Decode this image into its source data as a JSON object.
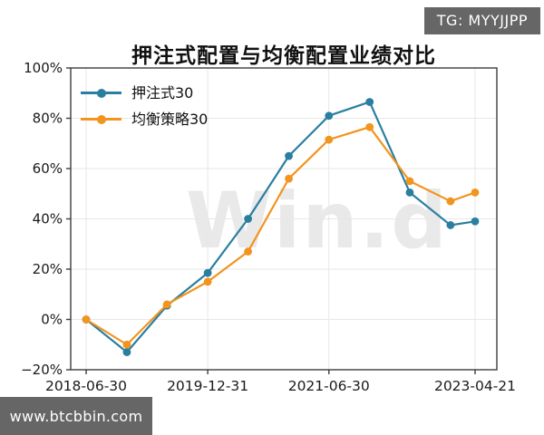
{
  "header": {
    "badge_label": "TG: MYYJJPP"
  },
  "watermark": {
    "text": "Win.d"
  },
  "footer": {
    "site_label": "www.btcbbin.com"
  },
  "colors": {
    "badge_bg": "#666666",
    "footer_bg": "#666666",
    "grid": "#e7e7e7",
    "axis": "#3d3d3d",
    "tick_text": "#1a1a1a",
    "watermark": "#e9e9e9",
    "series_blue": "#2a7fa0",
    "series_orange": "#f2941e"
  },
  "chart_data": {
    "type": "line",
    "title": "押注式配置与均衡配置业绩对比",
    "x": [
      "2018-06-30",
      "2018-12-31",
      "2019-06-30",
      "2019-12-31",
      "2020-06-30",
      "2020-12-31",
      "2021-06-30",
      "2021-12-31",
      "2022-06-30",
      "2022-12-31",
      "2023-04-21"
    ],
    "series": [
      {
        "name": "押注式30",
        "color": "#2a7fa0",
        "values": [
          0,
          -13,
          5.5,
          18.5,
          40,
          65,
          81,
          86.5,
          50.5,
          37.5,
          39
        ]
      },
      {
        "name": "均衡策略30",
        "color": "#f2941e",
        "values": [
          0,
          -10,
          6,
          15,
          27,
          56,
          71.5,
          76.5,
          55,
          47,
          50.5
        ]
      }
    ],
    "ylim": [
      -20,
      100
    ],
    "ytick_step": 20,
    "ytick_suffix": "%",
    "xtick_labels": [
      "2018-06-30",
      "2019-12-31",
      "2021-06-30",
      "2023-04-21"
    ],
    "grid": true,
    "legend_position": "upper left"
  }
}
